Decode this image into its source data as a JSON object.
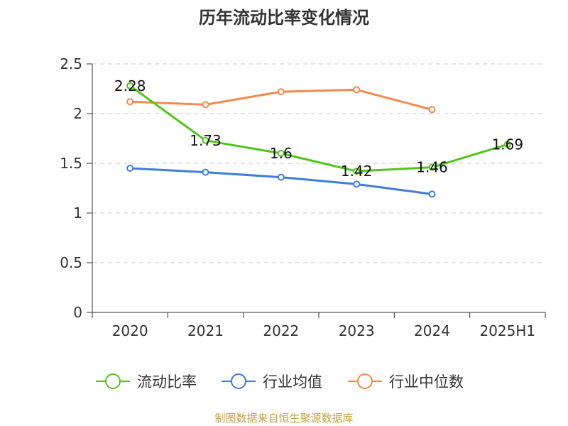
{
  "chart_data": {
    "type": "line",
    "title": "历年流动比率变化情况",
    "categories": [
      "2020",
      "2021",
      "2022",
      "2023",
      "2024",
      "2025H1"
    ],
    "ylim": [
      0,
      2.5
    ],
    "yticks": [
      "0",
      "0.5",
      "1",
      "1.5",
      "2",
      "2.5"
    ],
    "grid": true,
    "legend_position": "bottom",
    "series": [
      {
        "name": "流动比率",
        "color": "#52c41a",
        "values": [
          2.28,
          1.73,
          1.6,
          1.42,
          1.46,
          1.69
        ],
        "labels": [
          "2.28",
          "1.73",
          "1.6",
          "1.42",
          "1.46",
          "1.69"
        ]
      },
      {
        "name": "行业均值",
        "color": "#3f7ddb",
        "values": [
          1.45,
          1.41,
          1.36,
          1.29,
          1.19,
          null
        ]
      },
      {
        "name": "行业中位数",
        "color": "#f5894d",
        "values": [
          2.12,
          2.09,
          2.22,
          2.24,
          2.04,
          null
        ]
      }
    ]
  },
  "source": {
    "text": "制图数据来自恒生聚源数据库",
    "color": "#c8a13a"
  }
}
